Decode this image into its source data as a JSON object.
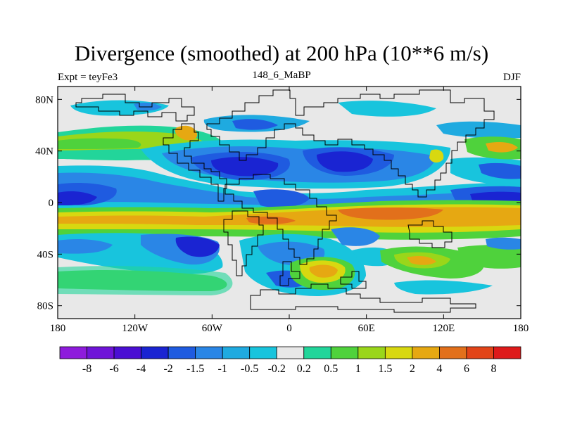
{
  "title": "Divergence (smoothed) at 200 hPa (10**6 m/s)",
  "subtitle_left": "Expt = teyFe3",
  "subtitle_center": "148_6_MaBP",
  "subtitle_right": "DJF",
  "map": {
    "projection": "cylindrical-equidistant",
    "lon_range": [
      -180,
      180
    ],
    "lat_range": [
      -90,
      90
    ],
    "x_ticks": [
      {
        "lon": -180,
        "label": "180"
      },
      {
        "lon": -120,
        "label": "120W"
      },
      {
        "lon": -60,
        "label": "60W"
      },
      {
        "lon": 0,
        "label": "0"
      },
      {
        "lon": 60,
        "label": "60E"
      },
      {
        "lon": 120,
        "label": "120E"
      },
      {
        "lon": 180,
        "label": "180"
      }
    ],
    "y_ticks": [
      {
        "lat": 80,
        "label": "80N"
      },
      {
        "lat": 40,
        "label": "40N"
      },
      {
        "lat": 0,
        "label": "0"
      },
      {
        "lat": -40,
        "label": "40S"
      },
      {
        "lat": -80,
        "label": "80S"
      }
    ]
  },
  "colorbar": {
    "colors": [
      "#8e1bdc",
      "#6f14d8",
      "#4b0fd3",
      "#1a24d2",
      "#1f5be0",
      "#2a86e6",
      "#1faae0",
      "#18c4dd",
      "#e8e8e8",
      "#22d59a",
      "#4fd23c",
      "#9ad61a",
      "#d8d810",
      "#e6a812",
      "#e2701b",
      "#e24418",
      "#de1a1a"
    ],
    "labels": [
      "-8",
      "-6",
      "-4",
      "-2",
      "-1.5",
      "-1",
      "-0.5",
      "-0.2",
      "0.2",
      "0.5",
      "1",
      "1.5",
      "2",
      "4",
      "6",
      "8"
    ]
  },
  "chart_data": {
    "type": "filled-contour-map",
    "variable": "Divergence (smoothed) at 200 hPa",
    "units": "10**6 m/s",
    "levels": [
      -8,
      -6,
      -4,
      -2,
      -1.5,
      -1,
      -0.5,
      -0.2,
      0.2,
      0.5,
      1,
      1.5,
      2,
      4,
      6,
      8
    ],
    "features": [
      {
        "name": "tropical-convergence-band",
        "lat": 0,
        "lon_range": [
          -180,
          180
        ],
        "value": -2
      },
      {
        "name": "south-tropical-divergence-band",
        "lat": -15,
        "lon_range": [
          -180,
          180
        ],
        "value": 4
      },
      {
        "name": "east-pacific-convergence",
        "lat": 0,
        "lon_range": [
          -175,
          -140
        ],
        "value": -4
      },
      {
        "name": "central-pacific-convergence",
        "lat": 0,
        "lon_range": [
          140,
          175
        ],
        "value": -4
      },
      {
        "name": "midlatitude-divergence-north",
        "lat": 40,
        "lon_range": [
          -180,
          -80
        ],
        "value": 2
      },
      {
        "name": "north-atlantic-eurasia-convergence",
        "lat": 30,
        "lon_range": [
          -80,
          80
        ],
        "value": -4
      },
      {
        "name": "south-atlantic-convergence",
        "lat": -40,
        "lon_range": [
          -130,
          -40
        ],
        "value": -2
      },
      {
        "name": "southern-ocean-divergence",
        "lat": -50,
        "lon_range": [
          10,
          60
        ],
        "value": 1.5
      }
    ]
  }
}
